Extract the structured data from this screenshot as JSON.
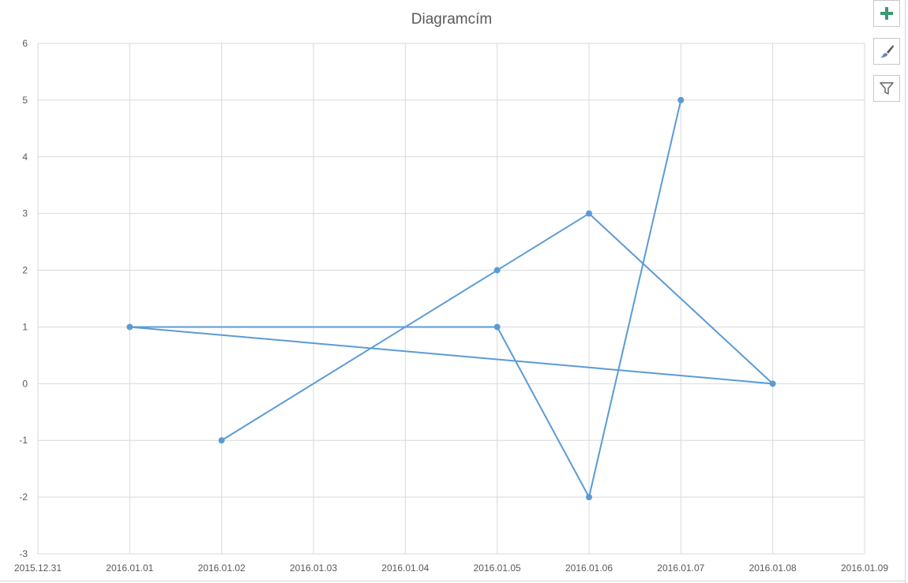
{
  "chart_data": {
    "type": "line",
    "title": "Diagramcím",
    "xlabel": "",
    "ylabel": "",
    "x_tick_labels": [
      "2015.12.31",
      "2016.01.01",
      "2016.01.02",
      "2016.01.03",
      "2016.01.04",
      "2016.01.05",
      "2016.01.06",
      "2016.01.07",
      "2016.01.08",
      "2016.01.09"
    ],
    "y_tick_labels": [
      "-3",
      "-2",
      "-1",
      "0",
      "1",
      "2",
      "3",
      "4",
      "5",
      "6"
    ],
    "xlim": [
      "2015.12.31",
      "2016.01.09"
    ],
    "ylim": [
      -3,
      6
    ],
    "grid": true,
    "legend": "none",
    "series": [
      {
        "color": "#5B9BD5",
        "points": [
          {
            "x": "2016.01.02",
            "y": -1
          },
          {
            "x": "2016.01.05",
            "y": 2
          },
          {
            "x": "2016.01.06",
            "y": 3
          },
          {
            "x": "2016.01.08",
            "y": 0
          },
          {
            "x": "2016.01.01",
            "y": 1
          },
          {
            "x": "2016.01.05",
            "y": 1
          },
          {
            "x": "2016.01.06",
            "y": -2
          },
          {
            "x": "2016.01.07",
            "y": 5
          }
        ]
      }
    ]
  },
  "toolbar": {
    "buttons": [
      {
        "name": "chart-elements-button",
        "icon": "plus-icon",
        "color": "#3a9a6e"
      },
      {
        "name": "chart-styles-button",
        "icon": "paintbrush-icon",
        "color": "#555555"
      },
      {
        "name": "chart-filters-button",
        "icon": "filter-icon",
        "color": "#666666"
      }
    ]
  }
}
